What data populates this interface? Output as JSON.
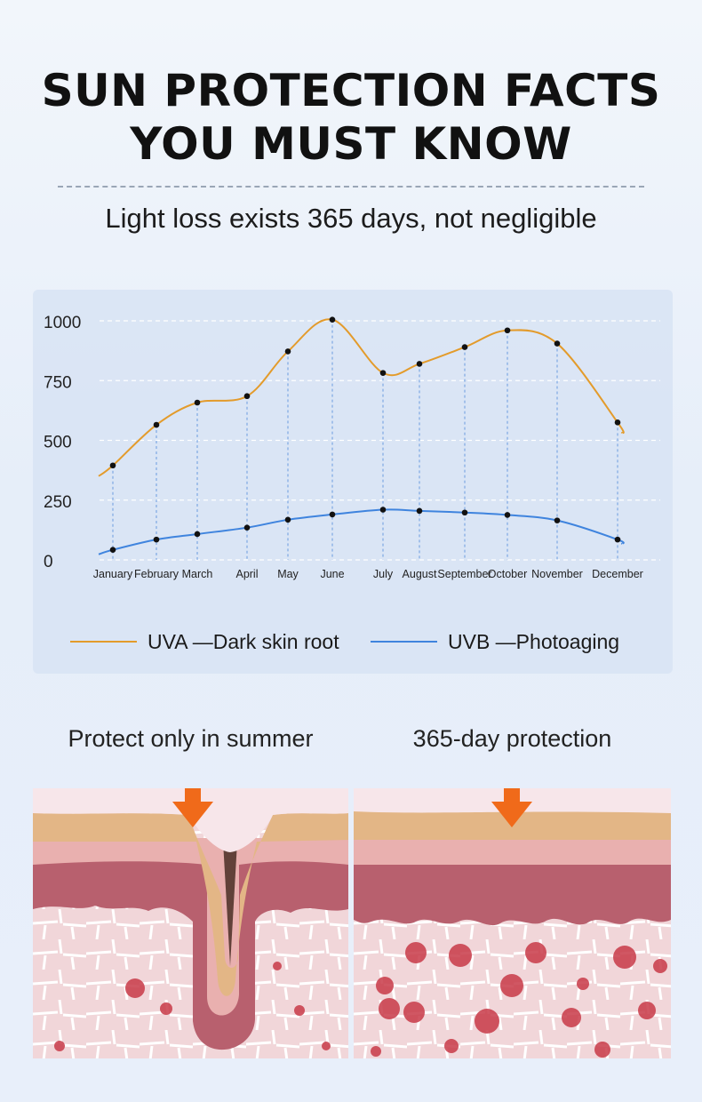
{
  "header": {
    "title_line1": "SUN PROTECTION FACTS",
    "title_line2": "YOU MUST KNOW",
    "subtitle": "Light loss exists 365 days, not negligible"
  },
  "chart_data": {
    "type": "line",
    "categories": [
      "January",
      "February",
      "March",
      "April",
      "May",
      "June",
      "July",
      "August",
      "September",
      "October",
      "November",
      "December"
    ],
    "ylim": [
      0,
      1000
    ],
    "yticks": [
      "0",
      "250",
      "500",
      "750",
      "1000"
    ],
    "grid": true,
    "legend_position": "bottom",
    "series": [
      {
        "name": "UVA —Dark skin root",
        "color": "#e39b2b",
        "values": [
          395,
          565,
          658,
          685,
          872,
          1005,
          782,
          820,
          890,
          960,
          905,
          575
        ]
      },
      {
        "name": "UVB —Photoaging",
        "color": "#3f84de",
        "values": [
          42,
          85,
          108,
          135,
          168,
          190,
          210,
          205,
          198,
          188,
          165,
          85
        ]
      }
    ]
  },
  "comparison": {
    "left_label": "Protect only in summer",
    "right_label": "365-day protection"
  },
  "colors": {
    "arrow": "#f06a1a",
    "epidermis": "#e5b98b",
    "dermis_light": "#eab1b0",
    "dermis_dark": "#b9606f",
    "tissue": "#f3d9dc",
    "cell": "#c83a48"
  }
}
